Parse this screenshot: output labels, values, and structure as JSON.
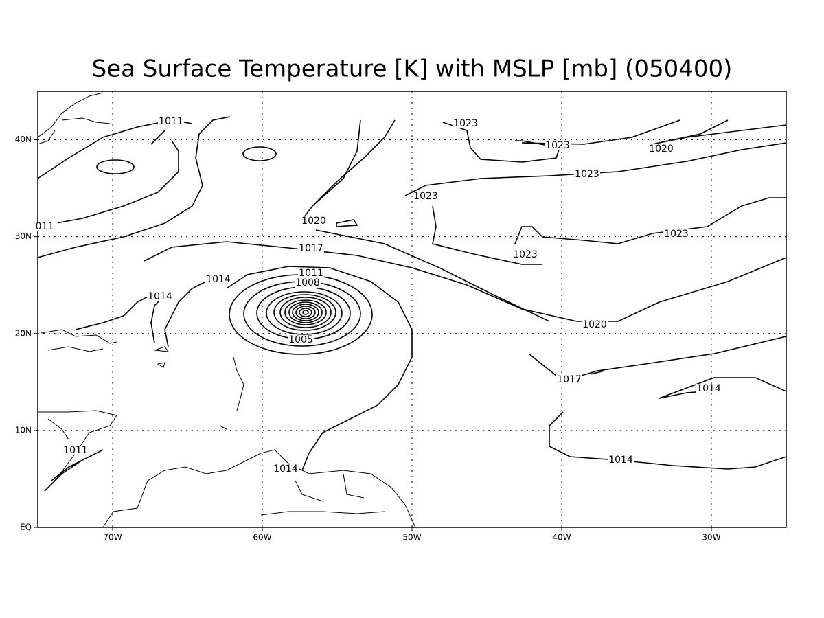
{
  "map": {
    "title": "Sea Surface Temperature [K] with MSLP [mb] (050400)",
    "lonlim": [
      -75,
      -25
    ],
    "latlim": [
      0,
      45
    ],
    "lon_ticks": [
      {
        "value": -70,
        "label": "70W"
      },
      {
        "value": -60,
        "label": "60W"
      },
      {
        "value": -50,
        "label": "50W"
      },
      {
        "value": -40,
        "label": "40W"
      },
      {
        "value": -30,
        "label": "30W"
      }
    ],
    "lat_ticks": [
      {
        "value": 0,
        "label": "EQ"
      },
      {
        "value": 10,
        "label": "10N"
      },
      {
        "value": 20,
        "label": "20N"
      },
      {
        "value": 30,
        "label": "30N"
      },
      {
        "value": 40,
        "label": "40N"
      }
    ],
    "grid": true,
    "contour_labels": [
      "1011",
      "1023",
      "1023",
      "1020",
      "1023",
      "1023",
      "011",
      "1020",
      "1023",
      "1017",
      "1023",
      "1011",
      "1014",
      "1008",
      "1014",
      "1020",
      "1005",
      "1017",
      "1014",
      "1011",
      "1014",
      "1014"
    ]
  }
}
